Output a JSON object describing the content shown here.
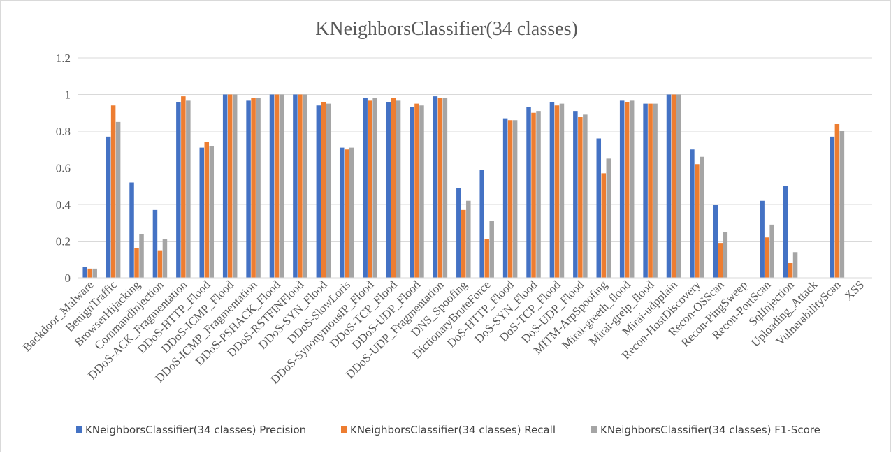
{
  "chart_data": {
    "type": "bar",
    "title": "KNeighborsClassifier(34 classes)",
    "xlabel": "",
    "ylabel": "",
    "ylim": [
      0,
      1.2
    ],
    "yticks": [
      0,
      0.2,
      0.4,
      0.6,
      0.8,
      1,
      1.2
    ],
    "ytick_labels": [
      "0",
      "0.2",
      "0.4",
      "0.6",
      "0.8",
      "1",
      "1.2"
    ],
    "grid": true,
    "legend_position": "bottom",
    "categories": [
      "Backdoor_Malware",
      "BenignTraffic",
      "BrowserHijacking",
      "CommandInjection",
      "DDoS-ACK_Fragmentation",
      "DDoS-HTTP_Flood",
      "DDoS-ICMP_Flood",
      "DDoS-ICMP_Fragmentation",
      "DDoS-PSHACK_Flood",
      "DDoS-RSTFINFlood",
      "DDoS-SYN_Flood",
      "DDoS-SlowLoris",
      "DDoS-SynonymousIP_Flood",
      "DDoS-TCP_Flood",
      "DDoS-UDP_Flood",
      "DDoS-UDP_Fragmentation",
      "DNS_Spoofing",
      "DictionaryBruteForce",
      "DoS-HTTP_Flood",
      "DoS-SYN_Flood",
      "DoS-TCP_Flood",
      "DoS-UDP_Flood",
      "MITM-ArpSpoofing",
      "Mirai-greeth_flood",
      "Mirai-greip_flood",
      "Mirai-udpplain",
      "Recon-HostDiscovery",
      "Recon-OSScan",
      "Recon-PingSweep",
      "Recon-PortScan",
      "SqlInjection",
      "Uploading_Attack",
      "VulnerabilityScan",
      "XSS"
    ],
    "series": [
      {
        "name": "KNeighborsClassifier(34 classes) Precision",
        "color": "#4472c4",
        "values": [
          0.06,
          0.77,
          0.52,
          0.37,
          0.96,
          0.71,
          1.0,
          0.97,
          1.0,
          1.0,
          0.94,
          0.71,
          0.98,
          0.96,
          0.93,
          0.99,
          0.49,
          0.59,
          0.87,
          0.93,
          0.96,
          0.91,
          0.76,
          0.97,
          0.95,
          1.0,
          0.7,
          0.4,
          0,
          0.42,
          0.5,
          0,
          0.77,
          0
        ]
      },
      {
        "name": "KNeighborsClassifier(34 classes) Recall",
        "color": "#ed7d31",
        "values": [
          0.05,
          0.94,
          0.16,
          0.15,
          0.99,
          0.74,
          1.0,
          0.98,
          1.0,
          1.0,
          0.96,
          0.7,
          0.97,
          0.98,
          0.95,
          0.98,
          0.37,
          0.21,
          0.86,
          0.9,
          0.94,
          0.88,
          0.57,
          0.96,
          0.95,
          1.0,
          0.62,
          0.19,
          0,
          0.22,
          0.08,
          0,
          0.84,
          0
        ]
      },
      {
        "name": "KNeighborsClassifier(34 classes) F1-Score",
        "color": "#a5a5a5",
        "values": [
          0.05,
          0.85,
          0.24,
          0.21,
          0.97,
          0.72,
          1.0,
          0.98,
          1.0,
          1.0,
          0.95,
          0.71,
          0.98,
          0.97,
          0.94,
          0.98,
          0.42,
          0.31,
          0.86,
          0.91,
          0.95,
          0.89,
          0.65,
          0.97,
          0.95,
          1.0,
          0.66,
          0.25,
          0,
          0.29,
          0.14,
          0,
          0.8,
          0
        ]
      }
    ]
  }
}
